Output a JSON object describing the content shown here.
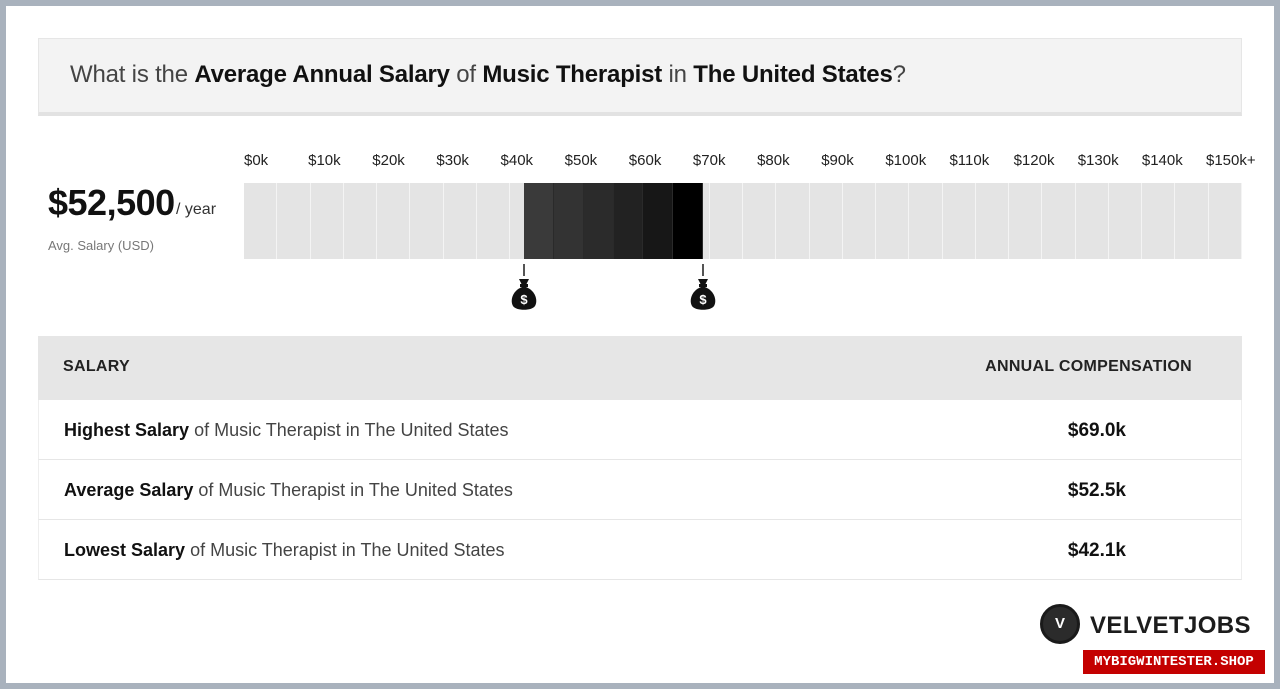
{
  "title": {
    "part1": "What is the ",
    "bold1": "Average Annual Salary",
    "part2": " of ",
    "bold2": "Music Therapist",
    "part3": " in ",
    "bold3": "The United States",
    "part4": "?"
  },
  "summary": {
    "value": "$52,500",
    "unit": "/ year",
    "label": "Avg. Salary (USD)"
  },
  "chart_data": {
    "type": "bar",
    "title": "",
    "x_tick_labels": [
      "$0k",
      "$10k",
      "$20k",
      "$30k",
      "$40k",
      "$50k",
      "$60k",
      "$70k",
      "$80k",
      "$90k",
      "$100k",
      "$110k",
      "$120k",
      "$130k",
      "$140k",
      "$150k+"
    ],
    "x_range": [
      0,
      150000
    ],
    "salary_range": {
      "low": 42100,
      "high": 69000,
      "average": 52500
    },
    "segment_colors": [
      "#3a3a3a",
      "#333333",
      "#2b2b2b",
      "#222222",
      "#171717",
      "#000000"
    ],
    "track_color": "#e4e4e4",
    "markers": [
      {
        "name": "lowest",
        "value": 42100,
        "icon": "money-bag-icon",
        "symbol": "$"
      },
      {
        "name": "highest",
        "value": 69000,
        "icon": "money-bag-icon",
        "symbol": "$"
      }
    ]
  },
  "table": {
    "header_left": "SALARY",
    "header_right": "ANNUAL COMPENSATION",
    "rows": [
      {
        "bold": "Highest Salary",
        "rest": " of Music Therapist in The United States",
        "value": "$69.0k"
      },
      {
        "bold": "Average Salary",
        "rest": " of Music Therapist in The United States",
        "value": "$52.5k"
      },
      {
        "bold": "Lowest Salary",
        "rest": " of Music Therapist in The United States",
        "value": "$42.1k"
      }
    ]
  },
  "logo": {
    "letter": "V",
    "text": "VELVETJOBS"
  },
  "watermark": "MYBIGWINTESTER.SHOP"
}
